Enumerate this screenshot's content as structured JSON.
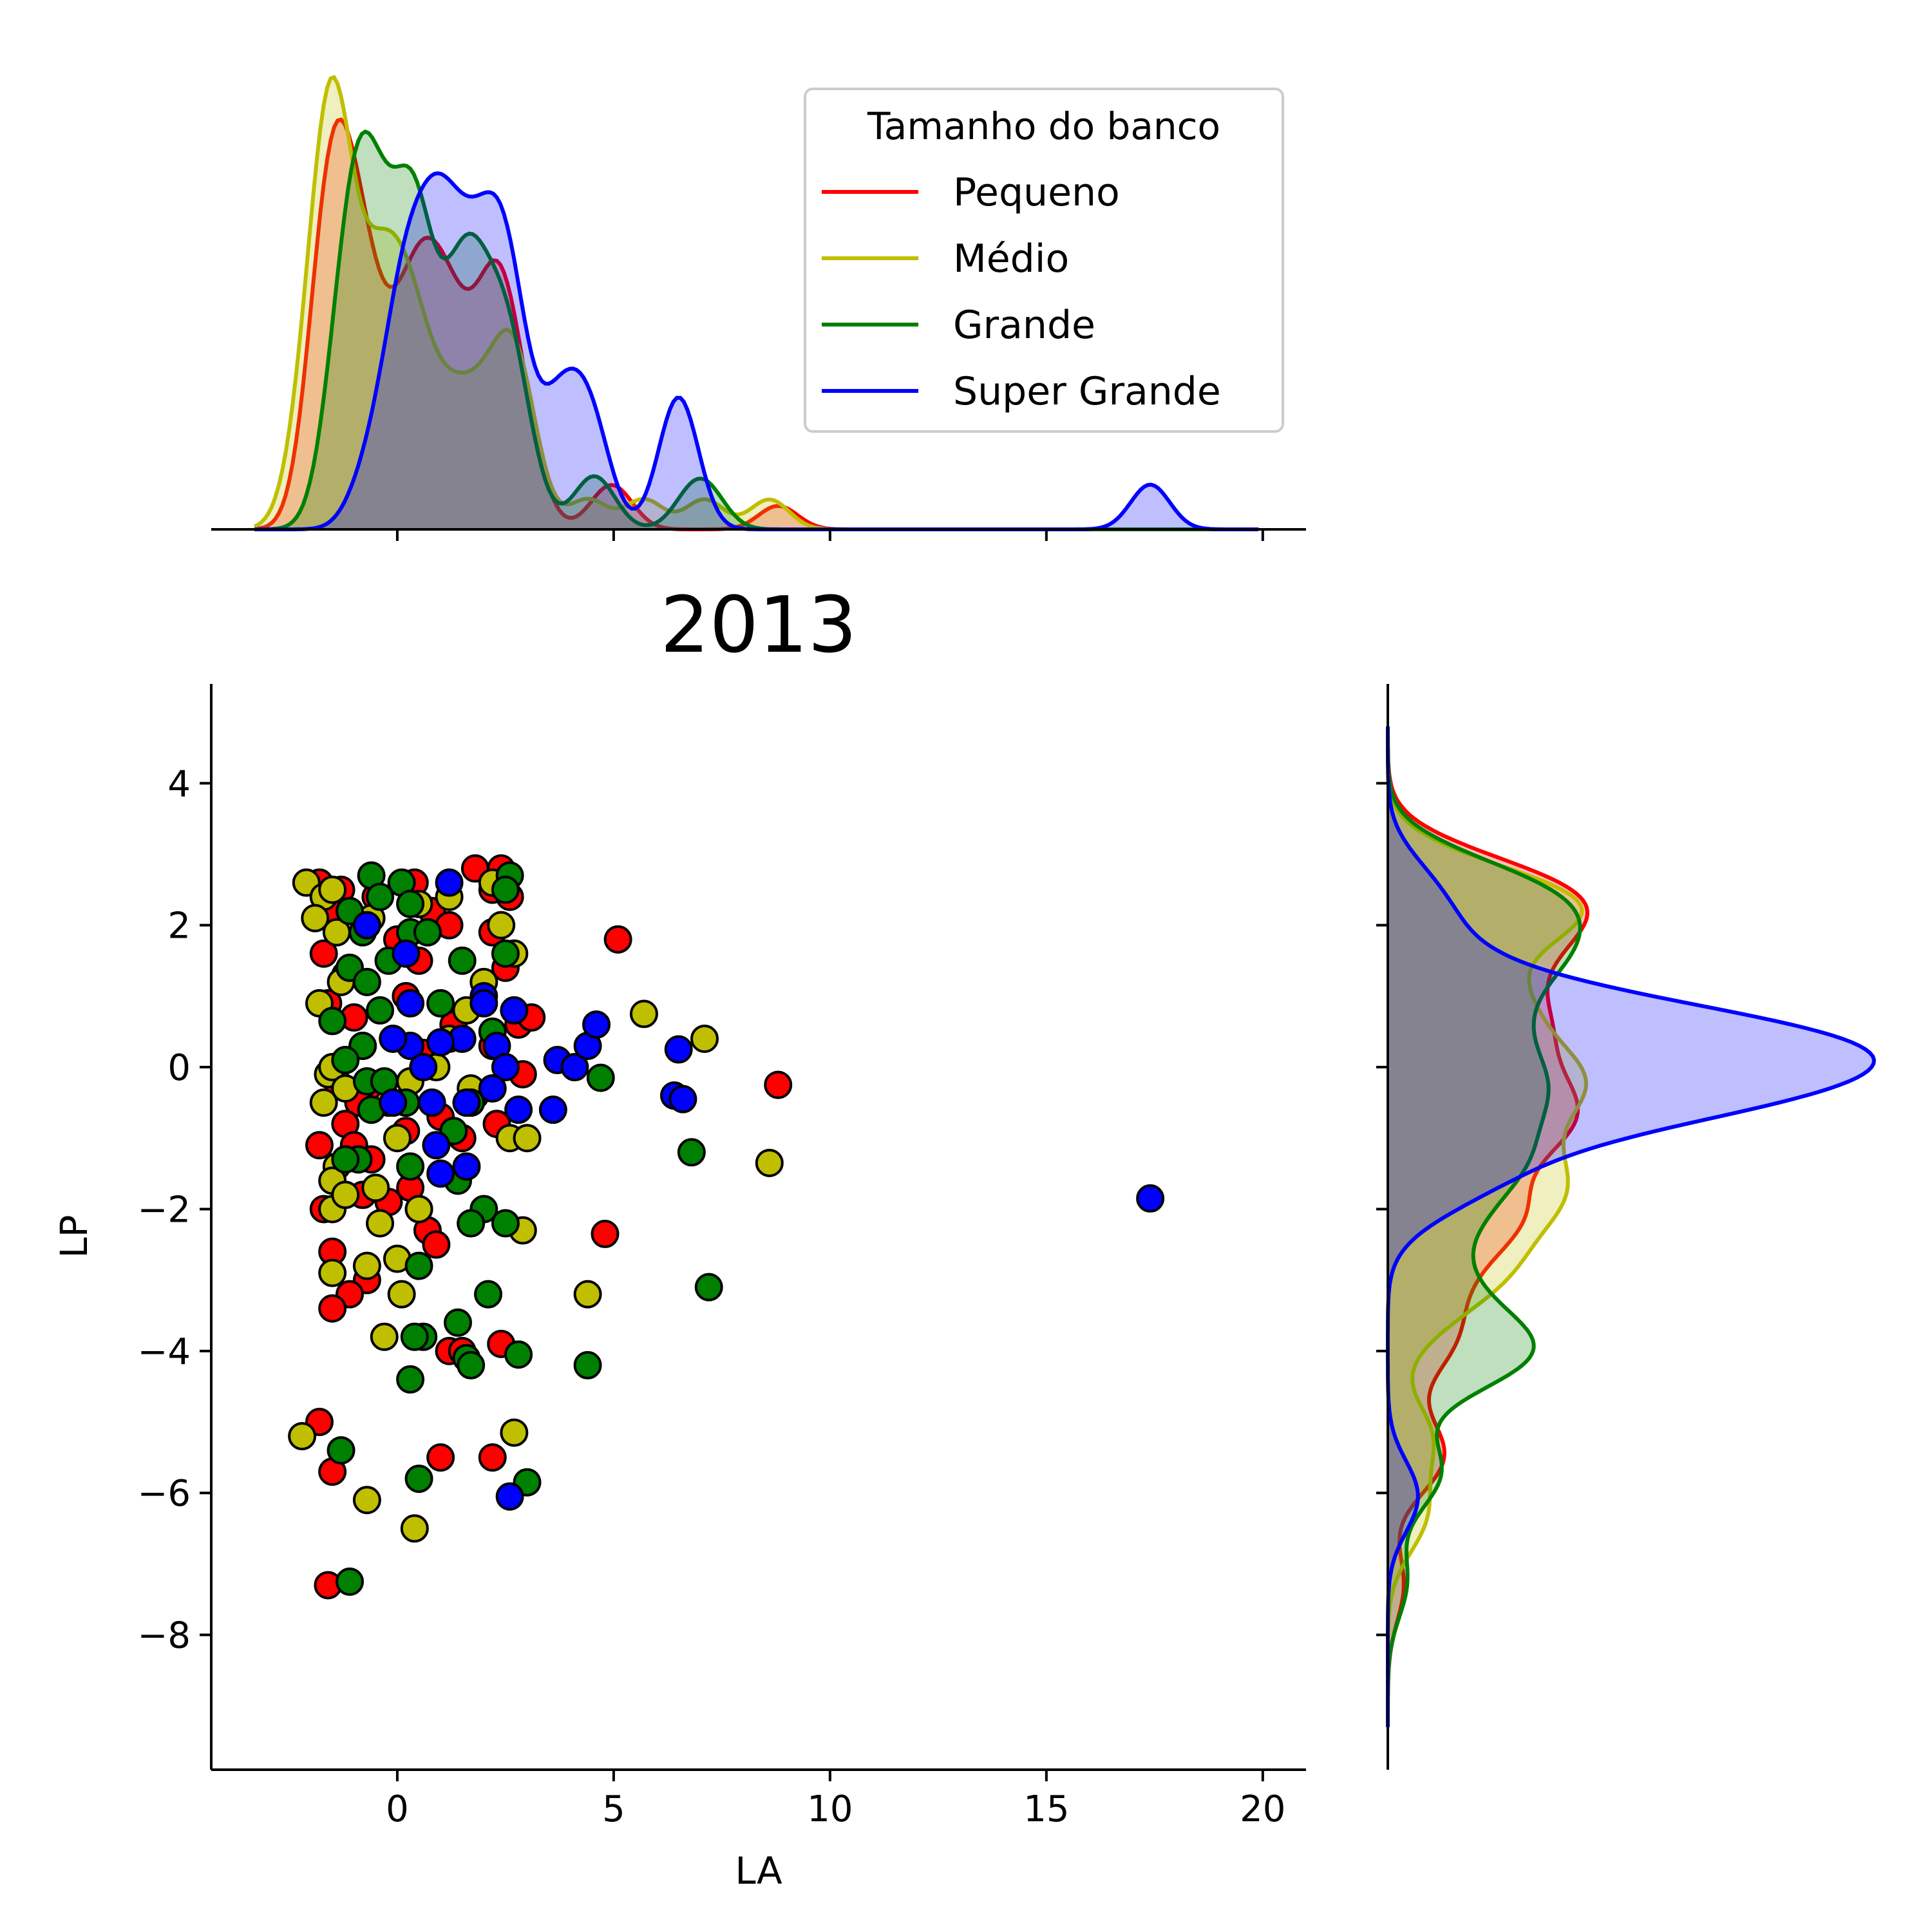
{
  "chart_data": {
    "type": "scatter",
    "title": "2013",
    "xlabel": "LA",
    "ylabel": "LP",
    "xlim": [
      -4.3,
      21
    ],
    "ylim": [
      -9.9,
      5.4
    ],
    "x_ticks": [
      0,
      5,
      10,
      15,
      20
    ],
    "y_ticks": [
      4,
      2,
      0,
      -2,
      -4,
      -6,
      -8
    ],
    "x_tick_labels": [
      "0",
      "5",
      "10",
      "15",
      "20"
    ],
    "y_tick_labels": [
      "4",
      "2",
      "0",
      "−2",
      "−4",
      "−6",
      "−8"
    ],
    "grid": false,
    "marginals": "kde (top: LA, right: LP)",
    "legend": {
      "title": "Tamanho do banco",
      "placement": "top-right of top marginal"
    },
    "series": [
      {
        "name": "Pequeno",
        "color": "#ff0000",
        "points": [
          [
            -1.8,
            2.6
          ],
          [
            -1.5,
            2.2
          ],
          [
            -1.7,
            1.6
          ],
          [
            -1.2,
            1.3
          ],
          [
            -1.6,
            0.9
          ],
          [
            -1.0,
            0.7
          ],
          [
            -0.8,
            0.3
          ],
          [
            -1.4,
            -0.2
          ],
          [
            -0.9,
            -0.5
          ],
          [
            -1.2,
            -0.8
          ],
          [
            -1.8,
            -1.1
          ],
          [
            -1.0,
            -1.1
          ],
          [
            -0.6,
            -1.3
          ],
          [
            -1.7,
            -2.0
          ],
          [
            -0.8,
            -1.8
          ],
          [
            -0.2,
            -1.9
          ],
          [
            0.3,
            -1.7
          ],
          [
            0.5,
            -2.0
          ],
          [
            0.7,
            -2.3
          ],
          [
            0.9,
            -2.5
          ],
          [
            -1.5,
            -2.6
          ],
          [
            -0.7,
            -3.0
          ],
          [
            -1.1,
            -3.2
          ],
          [
            -1.5,
            -3.4
          ],
          [
            0.2,
            1.0
          ],
          [
            0.5,
            1.5
          ],
          [
            0.8,
            2.2
          ],
          [
            1.2,
            2.0
          ],
          [
            1.8,
            2.8
          ],
          [
            2.2,
            2.5
          ],
          [
            2.4,
            2.8
          ],
          [
            2.6,
            2.4
          ],
          [
            2.2,
            1.9
          ],
          [
            2.5,
            1.4
          ],
          [
            2.8,
            0.6
          ],
          [
            3.1,
            0.7
          ],
          [
            2.2,
            0.3
          ],
          [
            2.9,
            -0.1
          ],
          [
            1.8,
            -0.4
          ],
          [
            2.3,
            -0.8
          ],
          [
            1.5,
            -1.0
          ],
          [
            1.0,
            -0.7
          ],
          [
            0.2,
            -0.9
          ],
          [
            -0.3,
            -0.4
          ],
          [
            0.6,
            0.2
          ],
          [
            1.3,
            0.6
          ],
          [
            0.4,
            2.6
          ],
          [
            -0.5,
            2.4
          ],
          [
            0.0,
            1.8
          ],
          [
            -1.3,
            2.5
          ],
          [
            5.1,
            1.8
          ],
          [
            8.8,
            -0.25
          ],
          [
            4.8,
            -2.35
          ],
          [
            1.2,
            -4.0
          ],
          [
            1.5,
            -4.0
          ],
          [
            2.4,
            -3.9
          ],
          [
            -1.8,
            -5.0
          ],
          [
            -1.5,
            -5.7
          ],
          [
            1.0,
            -5.5
          ],
          [
            2.2,
            -5.5
          ],
          [
            -1.6,
            -7.3
          ]
        ]
      },
      {
        "name": "Médio",
        "color": "#bfbf00",
        "points": [
          [
            -2.1,
            2.6
          ],
          [
            -1.7,
            2.4
          ],
          [
            -1.5,
            2.5
          ],
          [
            -1.9,
            2.1
          ],
          [
            -1.4,
            1.9
          ],
          [
            -1.8,
            0.9
          ],
          [
            -1.3,
            1.2
          ],
          [
            -1.6,
            -0.1
          ],
          [
            -1.7,
            -0.5
          ],
          [
            -1.5,
            0.0
          ],
          [
            -1.2,
            -0.3
          ],
          [
            -1.4,
            -1.4
          ],
          [
            -1.5,
            -1.6
          ],
          [
            -1.5,
            -2.0
          ],
          [
            -1.2,
            -1.8
          ],
          [
            -0.5,
            -1.7
          ],
          [
            -0.4,
            -2.2
          ],
          [
            0.0,
            -1.0
          ],
          [
            -0.2,
            -0.5
          ],
          [
            0.3,
            -0.2
          ],
          [
            0.9,
            0.0
          ],
          [
            1.7,
            -0.3
          ],
          [
            1.2,
            0.4
          ],
          [
            1.6,
            0.8
          ],
          [
            2.0,
            1.2
          ],
          [
            2.7,
            1.6
          ],
          [
            2.4,
            2.0
          ],
          [
            2.2,
            2.6
          ],
          [
            1.2,
            2.4
          ],
          [
            -0.6,
            2.1
          ],
          [
            0.5,
            2.3
          ],
          [
            -1.5,
            -2.9
          ],
          [
            -0.7,
            -2.8
          ],
          [
            0.0,
            -2.7
          ],
          [
            0.1,
            -3.2
          ],
          [
            0.5,
            -2.0
          ],
          [
            2.9,
            -2.3
          ],
          [
            2.6,
            -1.0
          ],
          [
            3.0,
            -1.0
          ],
          [
            4.4,
            -3.2
          ],
          [
            5.7,
            0.75
          ],
          [
            7.1,
            0.4
          ],
          [
            8.6,
            -1.35
          ],
          [
            -0.3,
            -3.8
          ],
          [
            -0.7,
            -6.1
          ],
          [
            0.4,
            -6.5
          ],
          [
            2.7,
            -5.15
          ],
          [
            -2.2,
            -5.2
          ]
        ]
      },
      {
        "name": "Grande",
        "color": "#008000",
        "points": [
          [
            -0.6,
            2.7
          ],
          [
            0.1,
            2.6
          ],
          [
            0.3,
            2.3
          ],
          [
            -0.4,
            2.4
          ],
          [
            -1.1,
            2.2
          ],
          [
            -0.8,
            1.9
          ],
          [
            0.3,
            1.9
          ],
          [
            0.7,
            1.9
          ],
          [
            -0.2,
            1.5
          ],
          [
            -1.1,
            1.4
          ],
          [
            -0.7,
            1.2
          ],
          [
            -0.4,
            0.8
          ],
          [
            -1.5,
            0.65
          ],
          [
            -0.8,
            0.3
          ],
          [
            -1.2,
            0.1
          ],
          [
            -0.7,
            -0.2
          ],
          [
            -0.6,
            -0.6
          ],
          [
            -0.3,
            -0.2
          ],
          [
            0.2,
            -0.5
          ],
          [
            -0.9,
            -1.3
          ],
          [
            -1.2,
            -1.3
          ],
          [
            0.3,
            -1.4
          ],
          [
            1.3,
            -0.9
          ],
          [
            1.7,
            -0.5
          ],
          [
            1.4,
            -1.6
          ],
          [
            2.0,
            -2.0
          ],
          [
            1.7,
            -2.2
          ],
          [
            2.5,
            -2.2
          ],
          [
            0.5,
            -2.8
          ],
          [
            2.1,
            -3.2
          ],
          [
            7.2,
            -3.1
          ],
          [
            4.7,
            -0.15
          ],
          [
            6.8,
            -1.2
          ],
          [
            1.4,
            -3.6
          ],
          [
            0.6,
            -3.8
          ],
          [
            0.4,
            -3.8
          ],
          [
            1.6,
            -4.1
          ],
          [
            1.7,
            -4.2
          ],
          [
            2.8,
            -4.05
          ],
          [
            4.4,
            -4.2
          ],
          [
            0.3,
            -4.4
          ],
          [
            0.5,
            -5.8
          ],
          [
            3.0,
            -5.85
          ],
          [
            -1.3,
            -5.4
          ],
          [
            -1.1,
            -7.25
          ],
          [
            2.5,
            1.6
          ],
          [
            2.6,
            2.7
          ],
          [
            2.5,
            2.5
          ],
          [
            1.5,
            1.5
          ],
          [
            1.0,
            0.9
          ],
          [
            2.2,
            0.5
          ]
        ]
      },
      {
        "name": "Super Grande",
        "color": "#0000ff",
        "points": [
          [
            -0.7,
            2.0
          ],
          [
            1.2,
            2.6
          ],
          [
            0.2,
            1.6
          ],
          [
            0.3,
            0.9
          ],
          [
            0.3,
            0.3
          ],
          [
            -0.1,
            0.4
          ],
          [
            0.6,
            0.0
          ],
          [
            0.8,
            -0.5
          ],
          [
            0.9,
            -1.1
          ],
          [
            1.6,
            -1.4
          ],
          [
            1.0,
            -1.5
          ],
          [
            1.6,
            -0.5
          ],
          [
            -0.1,
            -0.5
          ],
          [
            2.0,
            1.0
          ],
          [
            2.3,
            0.3
          ],
          [
            2.5,
            0.0
          ],
          [
            2.8,
            -0.6
          ],
          [
            1.5,
            0.4
          ],
          [
            1.0,
            0.35
          ],
          [
            2.0,
            0.9
          ],
          [
            3.6,
            -0.6
          ],
          [
            3.7,
            0.1
          ],
          [
            4.1,
            0.0
          ],
          [
            4.4,
            0.3
          ],
          [
            4.6,
            0.6
          ],
          [
            6.5,
            0.25
          ],
          [
            6.4,
            -0.4
          ],
          [
            6.6,
            -0.45
          ],
          [
            2.7,
            0.8
          ],
          [
            2.2,
            -0.3
          ],
          [
            17.4,
            -1.85
          ],
          [
            2.6,
            -6.05
          ]
        ]
      }
    ]
  }
}
